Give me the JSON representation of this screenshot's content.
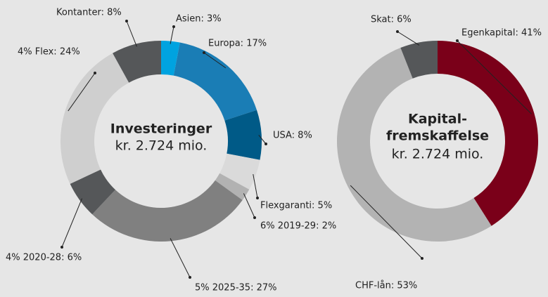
{
  "chart_data": [
    {
      "type": "pie",
      "donut": true,
      "center_label": [
        "Investeringer",
        "kr. 2.724 mio."
      ],
      "value_labels": [
        "Asien: 3%",
        "Europa: 17%",
        "USA: 8%",
        "Flexgaranti: 5%",
        "6% 2019-29: 2%",
        "5% 2025-35: 27%",
        "4% 2020-28: 6%",
        "4% Flex: 24%",
        "Kontanter: 8%"
      ],
      "values": [
        3,
        17,
        8,
        5,
        2,
        27,
        6,
        24,
        8
      ],
      "colors": [
        "#00a3e0",
        "#1a7db5",
        "#005a87",
        "#dadada",
        "#b2b2b2",
        "#808080",
        "#555759",
        "#cfcfcf",
        "#555759"
      ]
    },
    {
      "type": "pie",
      "donut": true,
      "center_label": [
        "Kapital-",
        "fremskaffelse",
        "kr. 2.724 mio."
      ],
      "value_labels": [
        "Egenkapital: 41%",
        "CHF-lån: 53%",
        "Skat: 6%"
      ],
      "values": [
        41,
        53,
        6
      ],
      "colors": [
        "#7a0019",
        "#b3b3b3",
        "#555759"
      ]
    }
  ]
}
